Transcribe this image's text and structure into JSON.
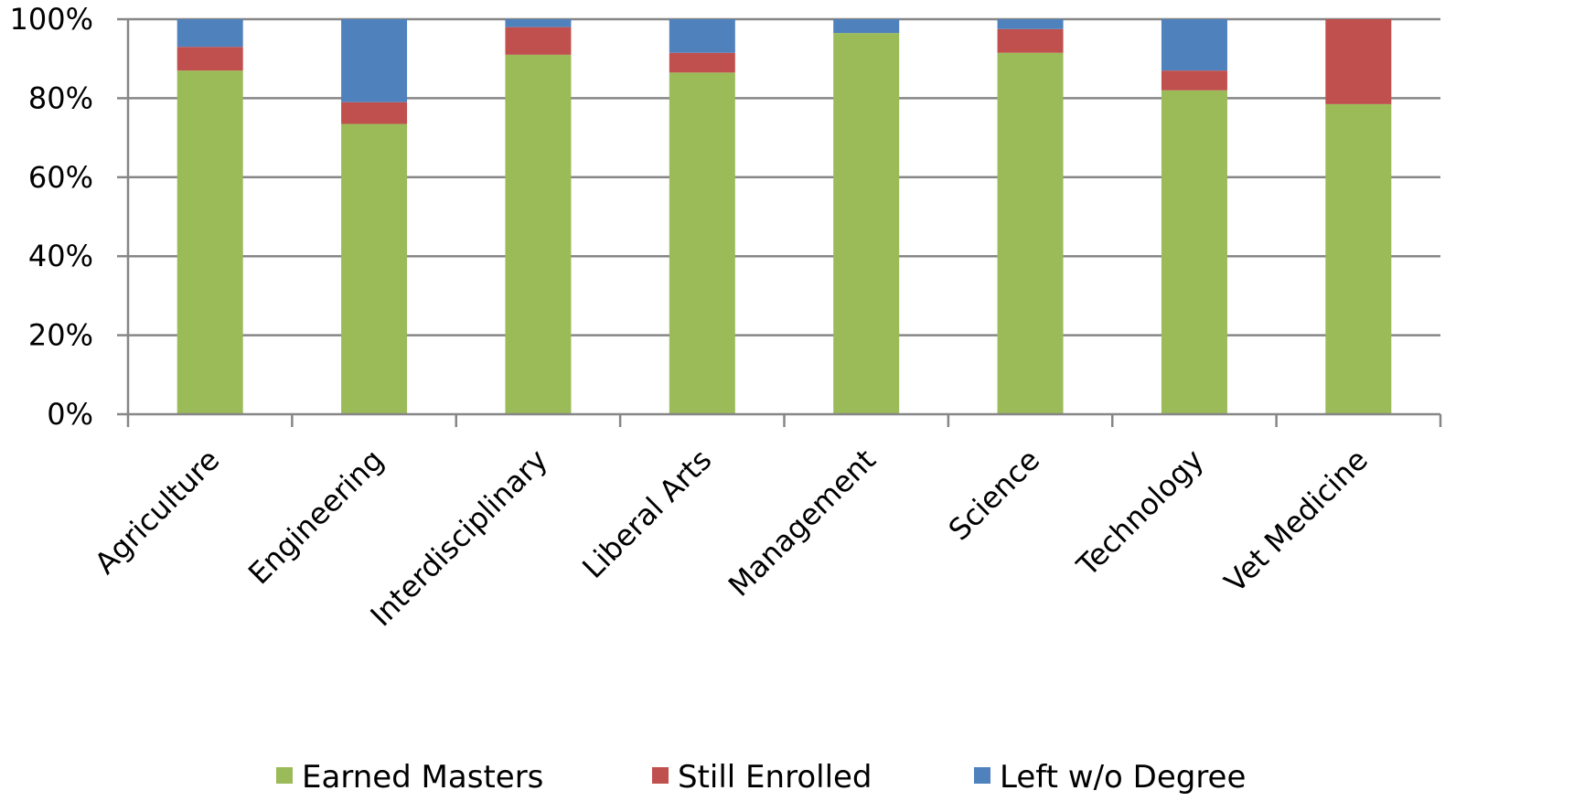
{
  "chart_data": {
    "type": "bar",
    "stacked": true,
    "percent_stacked": true,
    "categories": [
      "Agriculture",
      "Engineering",
      "Interdisciplinary",
      "Liberal Arts",
      "Management",
      "Science",
      "Technology",
      "Vet Medicine"
    ],
    "series": [
      {
        "name": "Earned Masters",
        "color": "#9BBB59",
        "values": [
          87,
          73.5,
          91,
          86.5,
          96.5,
          91.5,
          82,
          78.5
        ]
      },
      {
        "name": "Still Enrolled",
        "color": "#C0504D",
        "values": [
          6,
          5.5,
          7,
          5,
          0,
          6,
          5,
          21.5
        ]
      },
      {
        "name": "Left w/o Degree",
        "color": "#4F81BD",
        "values": [
          7,
          21,
          2,
          8.5,
          3.5,
          2.5,
          13,
          0
        ]
      }
    ],
    "yticks": [
      "0%",
      "20%",
      "40%",
      "60%",
      "80%",
      "100%"
    ],
    "ylim": [
      0,
      100
    ],
    "grid": true,
    "legend_position": "bottom",
    "title": "",
    "xlabel": "",
    "ylabel": ""
  }
}
